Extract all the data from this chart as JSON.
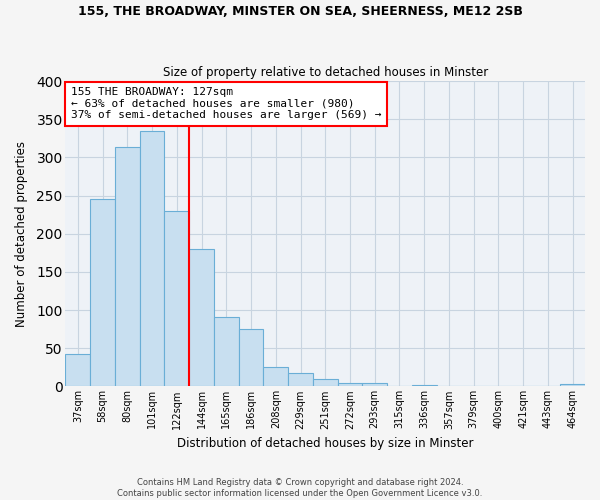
{
  "title1": "155, THE BROADWAY, MINSTER ON SEA, SHEERNESS, ME12 2SB",
  "title2": "Size of property relative to detached houses in Minster",
  "xlabel": "Distribution of detached houses by size in Minster",
  "ylabel": "Number of detached properties",
  "bar_labels": [
    "37sqm",
    "58sqm",
    "80sqm",
    "101sqm",
    "122sqm",
    "144sqm",
    "165sqm",
    "186sqm",
    "208sqm",
    "229sqm",
    "251sqm",
    "272sqm",
    "293sqm",
    "315sqm",
    "336sqm",
    "357sqm",
    "379sqm",
    "400sqm",
    "421sqm",
    "443sqm",
    "464sqm"
  ],
  "bar_values": [
    43,
    245,
    313,
    335,
    230,
    180,
    91,
    75,
    25,
    18,
    10,
    5,
    5,
    0,
    2,
    0,
    0,
    0,
    0,
    0,
    3
  ],
  "bar_color": "#c8dff0",
  "bar_edge_color": "#6aaed6",
  "vline_color": "red",
  "vline_index": 4.5,
  "annotation_title": "155 THE BROADWAY: 127sqm",
  "annotation_line1": "← 63% of detached houses are smaller (980)",
  "annotation_line2": "37% of semi-detached houses are larger (569) →",
  "annotation_box_color": "white",
  "annotation_box_edge_color": "red",
  "ylim": [
    0,
    400
  ],
  "yticks": [
    0,
    50,
    100,
    150,
    200,
    250,
    300,
    350,
    400
  ],
  "footnote1": "Contains HM Land Registry data © Crown copyright and database right 2024.",
  "footnote2": "Contains public sector information licensed under the Open Government Licence v3.0.",
  "bg_color": "#f5f5f5",
  "plot_bg_color": "#eef2f7",
  "grid_color": "#c8d4e0"
}
